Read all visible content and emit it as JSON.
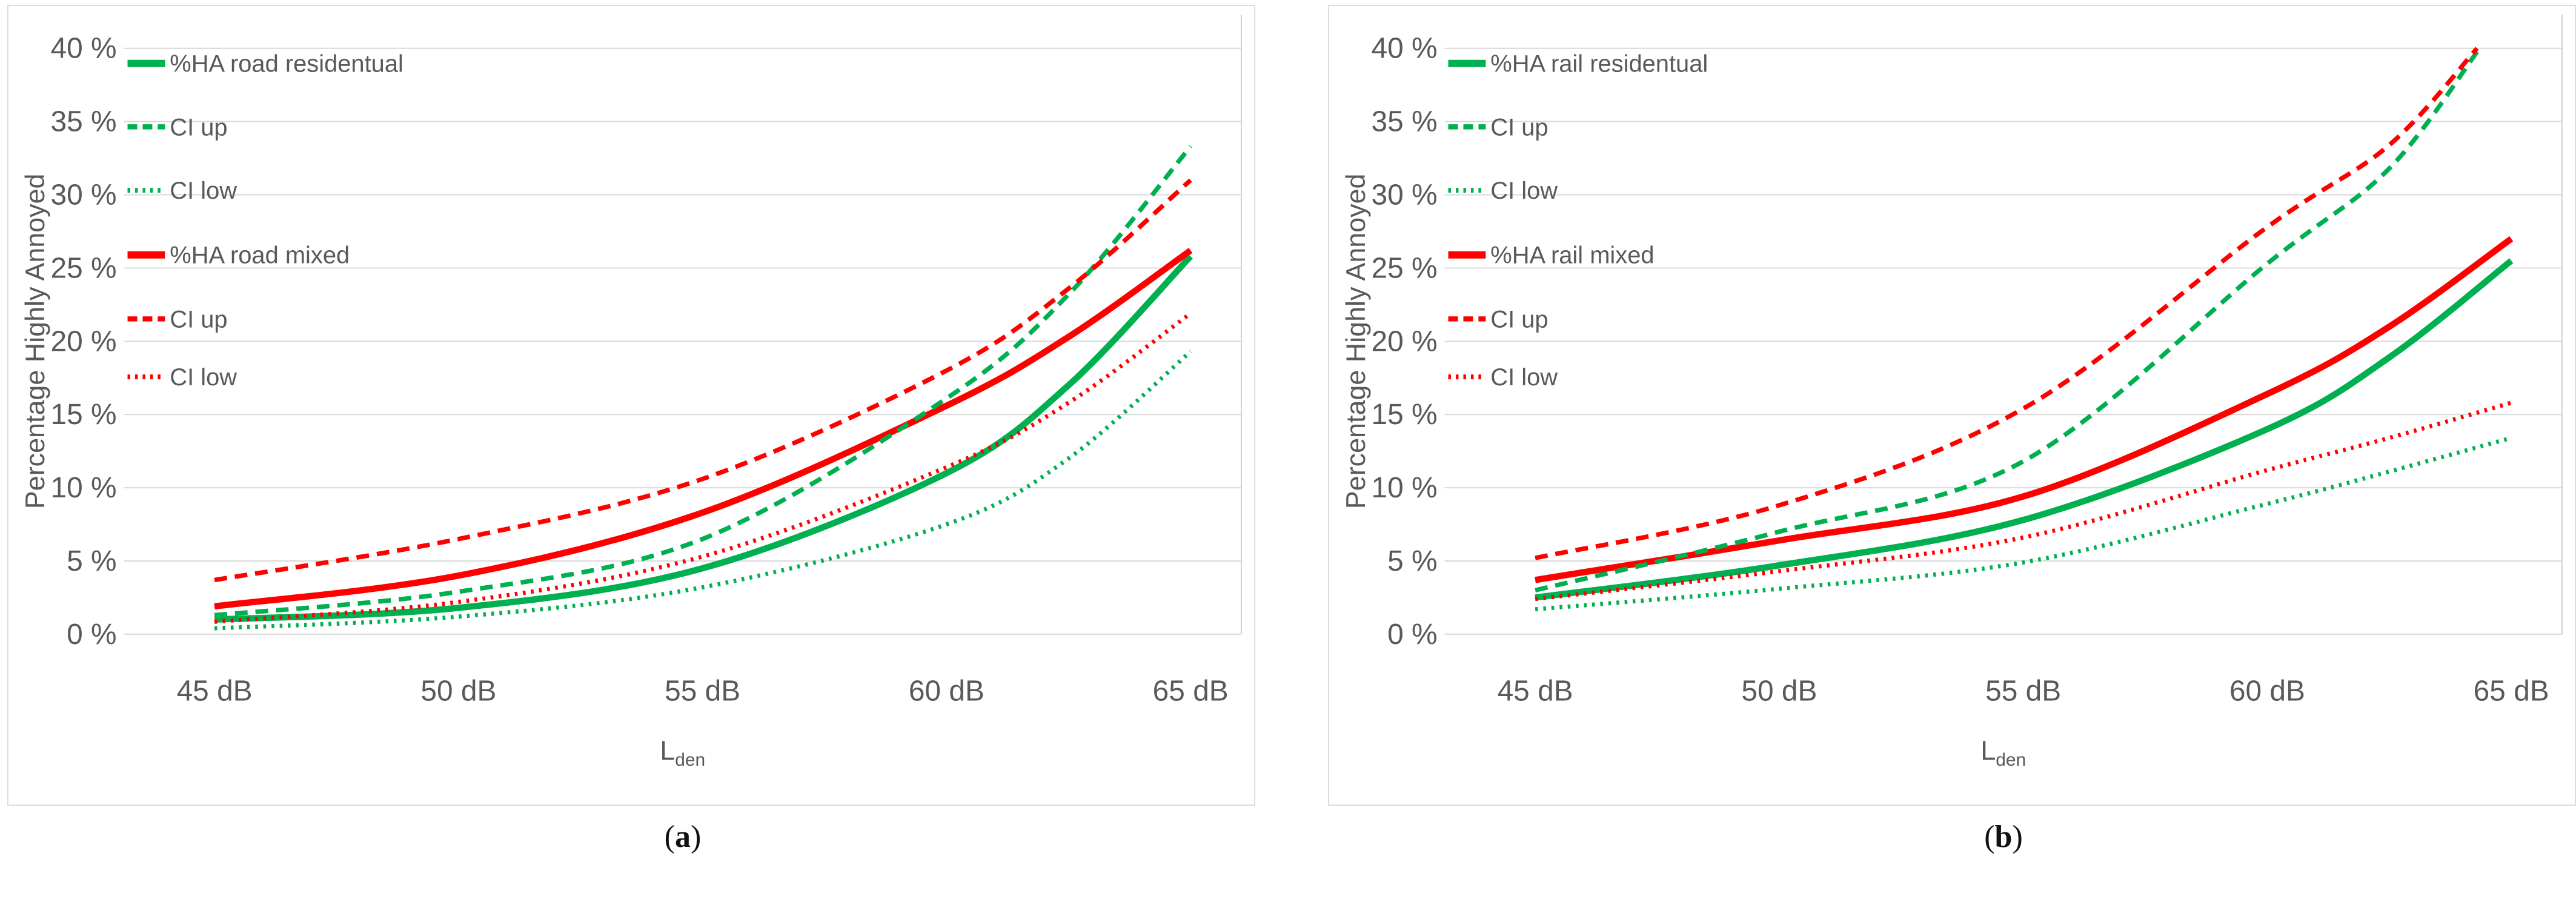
{
  "figure": {
    "y_axis_title": "Percentage Highly Annoyed",
    "x_axis_title": {
      "main": "L",
      "sub": "den"
    },
    "y_tick_labels": [
      "40 %",
      "35 %",
      "30 %",
      "25 %",
      "20 %",
      "15 %",
      "10 %",
      "5 %",
      "0 %"
    ],
    "x_tick_labels": [
      "45 dB",
      "50 dB",
      "55 dB",
      "60 dB",
      "65 dB"
    ],
    "captions": [
      {
        "letter": "a"
      },
      {
        "letter": "b"
      }
    ],
    "colors": {
      "green": "#00B050",
      "red": "#FF0000",
      "axis_text": "#595959",
      "gridline": "#D9D9D9",
      "plot_border": "#D2D2D2"
    }
  },
  "chart_data": [
    {
      "id": "a",
      "type": "line",
      "title": "",
      "xlabel": "Lden",
      "ylabel": "Percentage Highly Annoyed",
      "xlim": [
        45,
        65
      ],
      "ylim": [
        0,
        40
      ],
      "x_ticks": [
        45,
        50,
        55,
        60,
        65
      ],
      "x_tick_labels": [
        "45 dB",
        "50 dB",
        "55 dB",
        "60 dB",
        "65 dB"
      ],
      "y_ticks": [
        0,
        5,
        10,
        15,
        20,
        25,
        30,
        35,
        40
      ],
      "y_tick_labels": [
        "0 %",
        "5 %",
        "10 %",
        "15 %",
        "20 %",
        "25 %",
        "30 %",
        "35 %",
        "40 %"
      ],
      "grid": "horizontal",
      "legend_position": "inside-top-left",
      "series": [
        {
          "name": "%HA road residentual",
          "color": "#00B050",
          "style": "solid",
          "points": [
            [
              45,
              1.0
            ],
            [
              50,
              1.8
            ],
            [
              55,
              4.5
            ],
            [
              60,
              11.0
            ],
            [
              62.5,
              17.0
            ],
            [
              65,
              25.8
            ]
          ]
        },
        {
          "name": "CI up",
          "color": "#00B050",
          "style": "dashed",
          "points": [
            [
              45,
              1.3
            ],
            [
              50,
              2.9
            ],
            [
              55,
              6.5
            ],
            [
              60,
              16.1
            ],
            [
              62.5,
              23.2
            ],
            [
              65,
              33.3
            ]
          ]
        },
        {
          "name": "CI low",
          "color": "#00B050",
          "style": "dotted",
          "points": [
            [
              45,
              0.4
            ],
            [
              50,
              1.2
            ],
            [
              55,
              3.2
            ],
            [
              60,
              7.5
            ],
            [
              62.5,
              12.0
            ],
            [
              65,
              19.3
            ]
          ]
        },
        {
          "name": "%HA road mixed",
          "color": "#FF0000",
          "style": "solid",
          "points": [
            [
              45,
              1.9
            ],
            [
              50,
              4.0
            ],
            [
              55,
              8.3
            ],
            [
              60,
              15.6
            ],
            [
              62.5,
              20.3
            ],
            [
              65,
              26.2
            ]
          ]
        },
        {
          "name": "CI up",
          "color": "#FF0000",
          "style": "dashed",
          "points": [
            [
              45,
              3.7
            ],
            [
              50,
              6.5
            ],
            [
              55,
              10.6
            ],
            [
              60,
              18.0
            ],
            [
              62.5,
              23.6
            ],
            [
              65,
              31.0
            ]
          ]
        },
        {
          "name": "CI low",
          "color": "#FF0000",
          "style": "dotted",
          "points": [
            [
              45,
              0.85
            ],
            [
              50,
              2.2
            ],
            [
              55,
              5.3
            ],
            [
              60,
              11.4
            ],
            [
              62.5,
              15.8
            ],
            [
              65,
              21.9
            ]
          ]
        }
      ]
    },
    {
      "id": "b",
      "type": "line",
      "title": "",
      "xlabel": "Lden",
      "ylabel": "Percentage Highly Annoyed",
      "xlim": [
        45,
        65
      ],
      "ylim": [
        0,
        40
      ],
      "x_ticks": [
        45,
        50,
        55,
        60,
        65
      ],
      "x_tick_labels": [
        "45 dB",
        "50 dB",
        "55 dB",
        "60 dB",
        "65 dB"
      ],
      "y_ticks": [
        0,
        5,
        10,
        15,
        20,
        25,
        30,
        35,
        40
      ],
      "y_tick_labels": [
        "0 %",
        "5 %",
        "10 %",
        "15 %",
        "20 %",
        "25 %",
        "30 %",
        "35 %",
        "40 %"
      ],
      "grid": "horizontal",
      "legend_position": "inside-top-left",
      "series": [
        {
          "name": "%HA rail residentual",
          "color": "#00B050",
          "style": "solid",
          "points": [
            [
              45,
              2.5
            ],
            [
              50,
              4.7
            ],
            [
              55,
              7.8
            ],
            [
              60,
              14.0
            ],
            [
              62.5,
              18.9
            ],
            [
              65,
              25.5
            ]
          ]
        },
        {
          "name": "CI up",
          "color": "#00B050",
          "style": "dashed",
          "clipped_at_top": true,
          "points": [
            [
              45,
              3.0
            ],
            [
              50,
              7.0
            ],
            [
              55,
              11.8
            ],
            [
              60,
              25.3
            ],
            [
              62.5,
              31.8
            ],
            [
              64.35,
              40
            ]
          ]
        },
        {
          "name": "CI low",
          "color": "#00B050",
          "style": "dotted",
          "points": [
            [
              45,
              1.7
            ],
            [
              50,
              3.1
            ],
            [
              55,
              4.9
            ],
            [
              60,
              8.9
            ],
            [
              62.5,
              11.1
            ],
            [
              65,
              13.4
            ]
          ]
        },
        {
          "name": "%HA rail mixed",
          "color": "#FF0000",
          "style": "solid",
          "points": [
            [
              45,
              3.7
            ],
            [
              50,
              6.4
            ],
            [
              55,
              9.4
            ],
            [
              60,
              16.4
            ],
            [
              62.5,
              21.0
            ],
            [
              65,
              27.0
            ]
          ]
        },
        {
          "name": "CI up",
          "color": "#FF0000",
          "style": "dashed",
          "clipped_at_top": true,
          "points": [
            [
              45,
              5.2
            ],
            [
              50,
              8.8
            ],
            [
              55,
              15.4
            ],
            [
              60,
              27.8
            ],
            [
              62.5,
              33.4
            ],
            [
              64.3,
              40
            ]
          ]
        },
        {
          "name": "CI low",
          "color": "#FF0000",
          "style": "dotted",
          "points": [
            [
              45,
              2.4
            ],
            [
              50,
              4.3
            ],
            [
              55,
              6.6
            ],
            [
              60,
              11.2
            ],
            [
              62.5,
              13.4
            ],
            [
              65,
              15.8
            ]
          ]
        }
      ]
    }
  ]
}
